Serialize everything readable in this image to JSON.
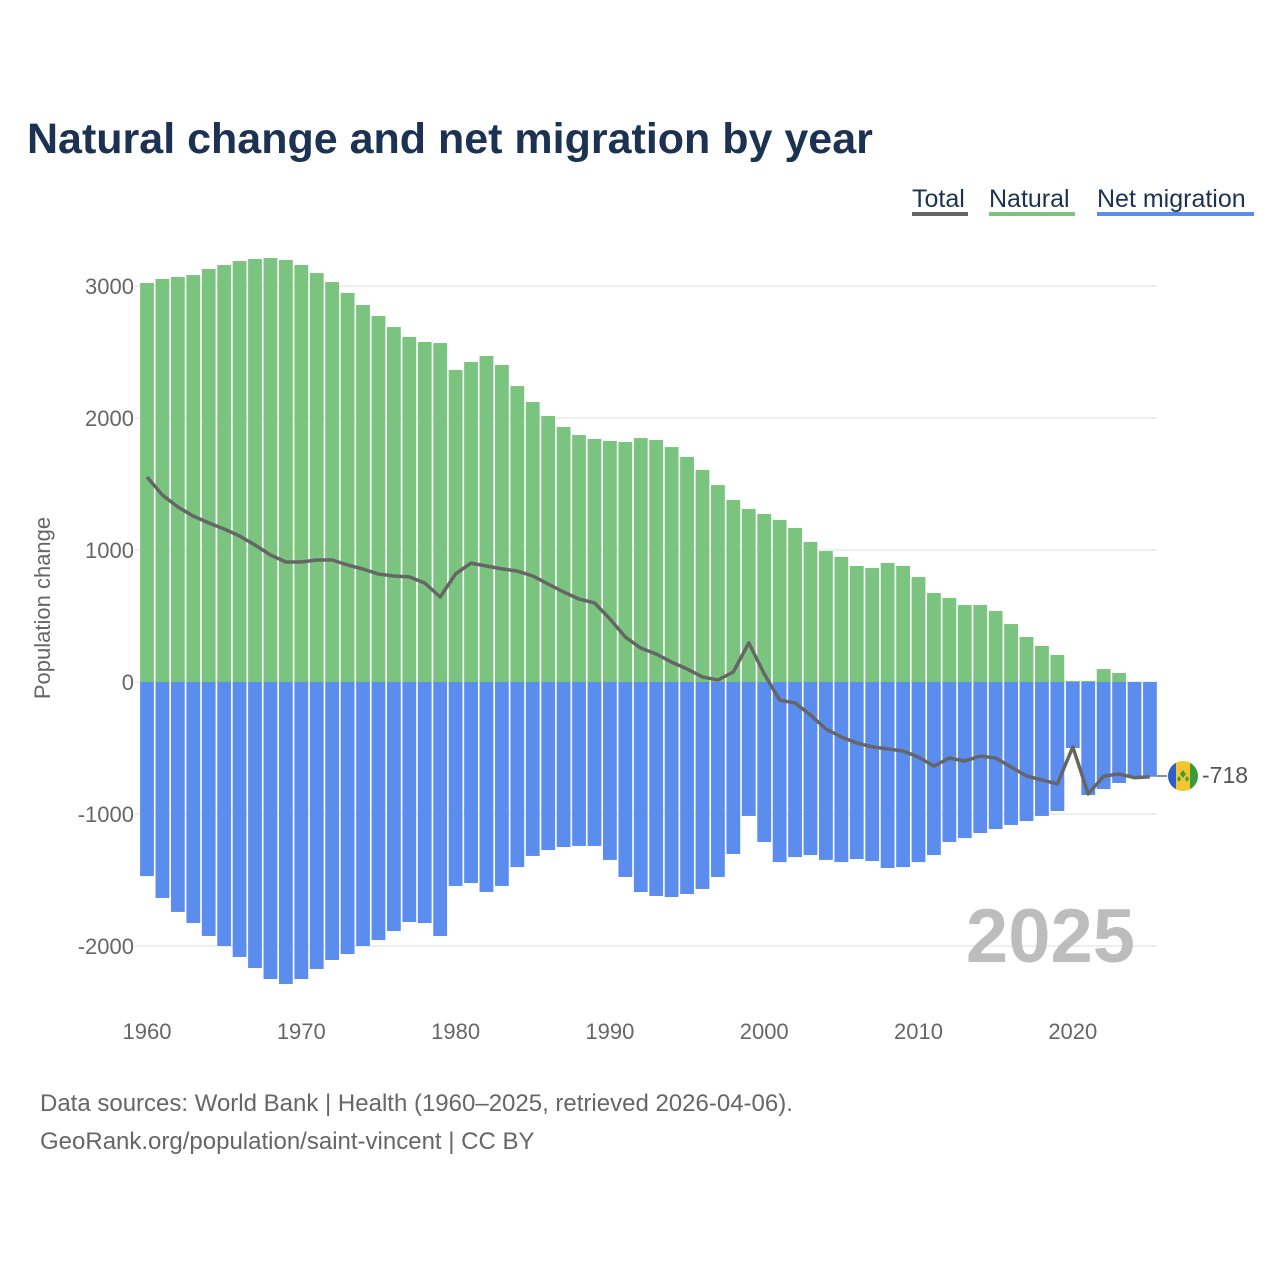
{
  "title": "Natural change and net migration by year",
  "legend": [
    {
      "label": "Total",
      "color": "#666666"
    },
    {
      "label": "Natural",
      "color": "#7bc47f"
    },
    {
      "label": "Net migration",
      "color": "#5b8def"
    }
  ],
  "watermark_year": "2025",
  "end_label": "-718",
  "footer": {
    "line1": "Data sources: World Bank | Health (1960–2025, retrieved 2026-04-06).",
    "line2": "GeoRank.org/population/saint-vincent | CC BY"
  },
  "chart_data": {
    "type": "bar",
    "title": "Natural change and net migration by year",
    "xlabel": "",
    "ylabel": "Population change",
    "ylim": [
      -2500,
      3300
    ],
    "xlim": [
      1960,
      2025
    ],
    "yticks": [
      3000,
      2000,
      1000,
      0,
      -1000,
      -2000
    ],
    "ytick_labels": [
      "3000",
      "2000",
      "1000",
      "0",
      "-1000",
      "-2000"
    ],
    "xticks": [
      1960,
      1970,
      1980,
      1990,
      2000,
      2010,
      2020
    ],
    "xtick_labels": [
      "1960",
      "1970",
      "1980",
      "1990",
      "2000",
      "2010",
      "2020"
    ],
    "grid": true,
    "legend_position": "top-right",
    "x": [
      1960,
      1961,
      1962,
      1963,
      1964,
      1965,
      1966,
      1967,
      1968,
      1969,
      1970,
      1971,
      1972,
      1973,
      1974,
      1975,
      1976,
      1977,
      1978,
      1979,
      1980,
      1981,
      1982,
      1983,
      1984,
      1985,
      1986,
      1987,
      1988,
      1989,
      1990,
      1991,
      1992,
      1993,
      1994,
      1995,
      1996,
      1997,
      1998,
      1999,
      2000,
      2001,
      2002,
      2003,
      2004,
      2005,
      2006,
      2007,
      2008,
      2009,
      2010,
      2011,
      2012,
      2013,
      2014,
      2015,
      2016,
      2017,
      2018,
      2019,
      2020,
      2021,
      2022,
      2023,
      2024,
      2025
    ],
    "series": [
      {
        "name": "Natural",
        "type": "bar",
        "values": [
          3023,
          3053,
          3068,
          3083,
          3129,
          3159,
          3189,
          3205,
          3212,
          3197,
          3159,
          3098,
          3030,
          2947,
          2856,
          2773,
          2689,
          2614,
          2576,
          2568,
          2364,
          2424,
          2470,
          2402,
          2242,
          2121,
          2015,
          1932,
          1871,
          1841,
          1826,
          1818,
          1848,
          1833,
          1780,
          1705,
          1606,
          1492,
          1379,
          1311,
          1273,
          1227,
          1167,
          1061,
          992,
          947,
          879,
          864,
          902,
          879,
          795,
          674,
          636,
          583,
          583,
          538,
          439,
          341,
          273,
          205,
          8,
          8,
          98,
          68,
          0,
          0
        ]
      },
      {
        "name": "Net migration",
        "type": "bar",
        "values": [
          -1470,
          -1636,
          -1742,
          -1826,
          -1924,
          -2000,
          -2083,
          -2167,
          -2250,
          -2288,
          -2250,
          -2174,
          -2106,
          -2061,
          -2000,
          -1955,
          -1886,
          -1818,
          -1826,
          -1924,
          -1545,
          -1523,
          -1591,
          -1545,
          -1402,
          -1318,
          -1273,
          -1250,
          -1242,
          -1242,
          -1348,
          -1477,
          -1591,
          -1621,
          -1629,
          -1606,
          -1568,
          -1477,
          -1303,
          -1015,
          -1212,
          -1364,
          -1326,
          -1311,
          -1348,
          -1364,
          -1341,
          -1356,
          -1409,
          -1402,
          -1364,
          -1311,
          -1212,
          -1182,
          -1144,
          -1114,
          -1083,
          -1053,
          -1015,
          -977,
          -500,
          -856,
          -811,
          -765,
          -725,
          -718
        ]
      },
      {
        "name": "Total",
        "type": "line",
        "values": [
          1553,
          1417,
          1326,
          1257,
          1205,
          1159,
          1106,
          1038,
          962,
          909,
          909,
          924,
          924,
          886,
          856,
          818,
          803,
          796,
          750,
          644,
          819,
          901,
          879,
          857,
          840,
          803,
          742,
          682,
          629,
          599,
          478,
          341,
          257,
          212,
          151,
          99,
          38,
          15,
          76,
          296,
          61,
          -137,
          -159,
          -250,
          -356,
          -417,
          -462,
          -492,
          -507,
          -523,
          -569,
          -637,
          -576,
          -599,
          -561,
          -576,
          -644,
          -712,
          -742,
          -772,
          -492,
          -848,
          -713,
          -697,
          -725,
          -718
        ]
      }
    ]
  }
}
